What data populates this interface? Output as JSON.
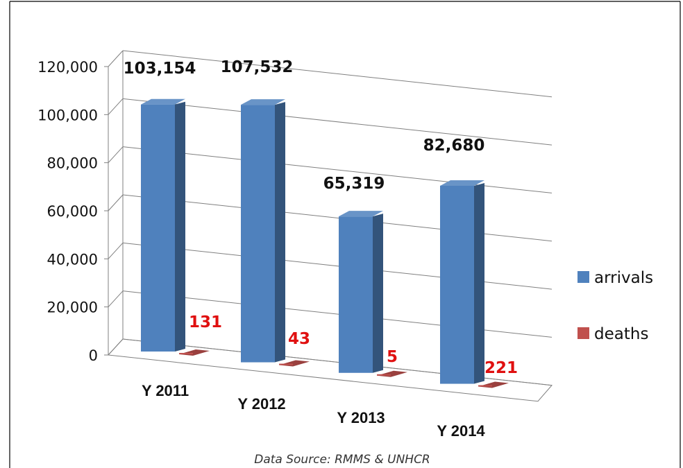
{
  "chart_data": {
    "type": "bar",
    "categories": [
      "Y 2011",
      "Y 2012",
      "Y 2013",
      "Y 2014"
    ],
    "series": [
      {
        "name": "arrivals",
        "values": [
          103154,
          107532,
          65319,
          82680
        ],
        "labels": [
          "103,154",
          "107,532",
          "65,319",
          "82,680"
        ]
      },
      {
        "name": "deaths",
        "values": [
          131,
          43,
          5,
          221
        ],
        "labels": [
          "131",
          "43",
          "5",
          "221"
        ]
      }
    ],
    "yticks": [
      "0",
      "20,000",
      "40,000",
      "60,000",
      "80,000",
      "100,000",
      "120,000"
    ],
    "ylim": [
      0,
      120000
    ],
    "grid": true,
    "legend_position": "right",
    "style": "3d-column"
  },
  "colors": {
    "arrivals": "#4f81bd",
    "deaths": "#c0504d",
    "deaths_label": "#e01010",
    "grid": "#7f7f7f"
  },
  "source_text": "Data Source: RMMS & UNHCR"
}
